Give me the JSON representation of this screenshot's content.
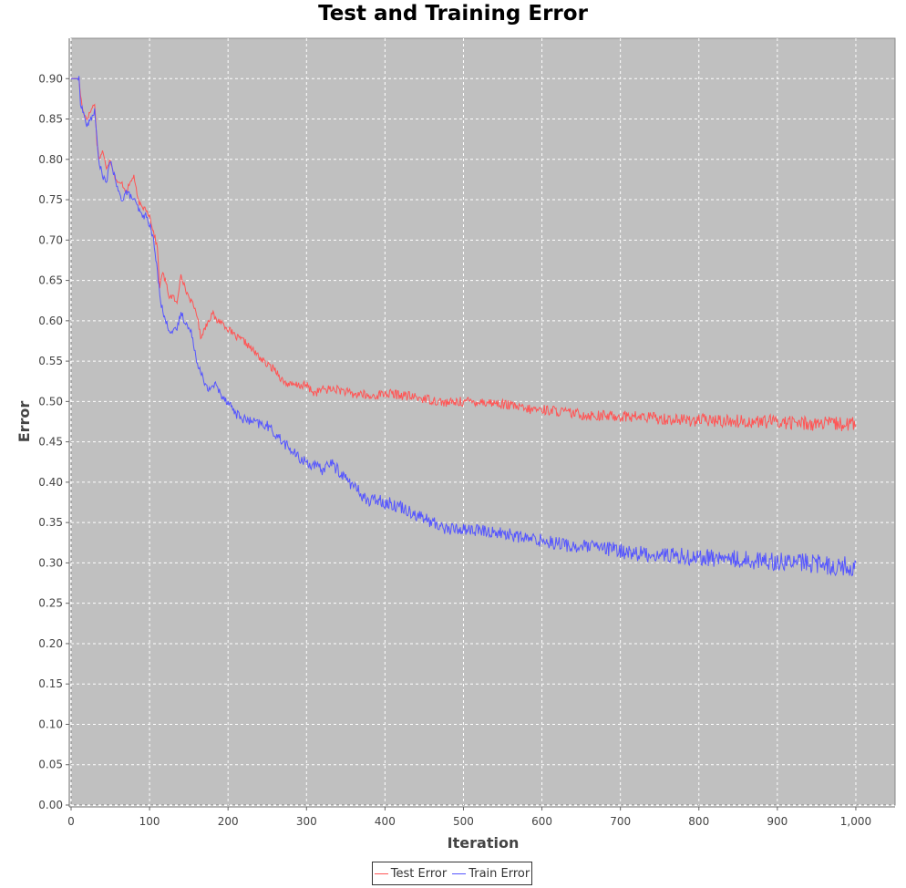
{
  "chart_data": {
    "type": "line",
    "title": "Test and Training Error",
    "xlabel": "Iteration",
    "ylabel": "Error",
    "xlim": [
      0,
      1050
    ],
    "ylim": [
      0.0,
      0.95
    ],
    "x_ticks": [
      {
        "value": 0,
        "label": "0"
      },
      {
        "value": 100,
        "label": "100"
      },
      {
        "value": 200,
        "label": "200"
      },
      {
        "value": 300,
        "label": "300"
      },
      {
        "value": 400,
        "label": "400"
      },
      {
        "value": 500,
        "label": "500"
      },
      {
        "value": 600,
        "label": "600"
      },
      {
        "value": 700,
        "label": "700"
      },
      {
        "value": 800,
        "label": "800"
      },
      {
        "value": 900,
        "label": "900"
      },
      {
        "value": 1000,
        "label": "1,000"
      }
    ],
    "y_ticks": [
      {
        "value": 0.0,
        "label": "0.00"
      },
      {
        "value": 0.05,
        "label": "0.05"
      },
      {
        "value": 0.1,
        "label": "0.10"
      },
      {
        "value": 0.15,
        "label": "0.15"
      },
      {
        "value": 0.2,
        "label": "0.20"
      },
      {
        "value": 0.25,
        "label": "0.25"
      },
      {
        "value": 0.3,
        "label": "0.30"
      },
      {
        "value": 0.35,
        "label": "0.35"
      },
      {
        "value": 0.4,
        "label": "0.40"
      },
      {
        "value": 0.45,
        "label": "0.45"
      },
      {
        "value": 0.5,
        "label": "0.50"
      },
      {
        "value": 0.55,
        "label": "0.55"
      },
      {
        "value": 0.6,
        "label": "0.60"
      },
      {
        "value": 0.65,
        "label": "0.65"
      },
      {
        "value": 0.7,
        "label": "0.70"
      },
      {
        "value": 0.75,
        "label": "0.75"
      },
      {
        "value": 0.8,
        "label": "0.80"
      },
      {
        "value": 0.85,
        "label": "0.85"
      },
      {
        "value": 0.9,
        "label": "0.90"
      }
    ],
    "grid": true,
    "legend_position": "bottom-center",
    "plot_background": "#c0c0c0",
    "series": [
      {
        "name": "Test Error",
        "color": "#ff5555",
        "x": [
          0,
          10,
          12,
          15,
          20,
          25,
          30,
          33,
          36,
          40,
          45,
          50,
          55,
          60,
          65,
          70,
          75,
          80,
          85,
          90,
          95,
          100,
          105,
          110,
          113,
          116,
          120,
          125,
          130,
          135,
          140,
          145,
          150,
          155,
          160,
          165,
          170,
          175,
          180,
          185,
          190,
          200,
          210,
          220,
          230,
          240,
          250,
          260,
          270,
          280,
          290,
          300,
          310,
          320,
          330,
          340,
          350,
          360,
          370,
          380,
          390,
          400,
          420,
          440,
          460,
          480,
          500,
          520,
          540,
          560,
          580,
          600,
          620,
          640,
          660,
          680,
          700,
          720,
          740,
          760,
          780,
          800,
          820,
          840,
          860,
          880,
          900,
          920,
          940,
          960,
          980,
          1000
        ],
        "y": [
          0.9,
          0.9,
          0.88,
          0.86,
          0.85,
          0.86,
          0.87,
          0.82,
          0.8,
          0.81,
          0.79,
          0.8,
          0.78,
          0.77,
          0.77,
          0.76,
          0.77,
          0.78,
          0.75,
          0.74,
          0.74,
          0.73,
          0.71,
          0.69,
          0.64,
          0.66,
          0.65,
          0.63,
          0.63,
          0.62,
          0.66,
          0.64,
          0.63,
          0.62,
          0.61,
          0.58,
          0.59,
          0.6,
          0.61,
          0.6,
          0.6,
          0.59,
          0.58,
          0.575,
          0.565,
          0.555,
          0.545,
          0.54,
          0.525,
          0.52,
          0.52,
          0.52,
          0.51,
          0.515,
          0.515,
          0.515,
          0.512,
          0.508,
          0.51,
          0.505,
          0.508,
          0.51,
          0.508,
          0.505,
          0.502,
          0.498,
          0.5,
          0.5,
          0.498,
          0.495,
          0.49,
          0.49,
          0.488,
          0.485,
          0.483,
          0.482,
          0.482,
          0.481,
          0.48,
          0.478,
          0.477,
          0.477,
          0.476,
          0.476,
          0.475,
          0.475,
          0.475,
          0.474,
          0.473,
          0.472,
          0.472,
          0.472
        ],
        "noise": 0.006
      },
      {
        "name": "Train Error",
        "color": "#5555ff",
        "x": [
          0,
          10,
          12,
          15,
          18,
          20,
          25,
          30,
          35,
          40,
          45,
          50,
          55,
          60,
          65,
          70,
          75,
          80,
          85,
          90,
          95,
          100,
          105,
          110,
          115,
          120,
          125,
          130,
          135,
          140,
          145,
          150,
          155,
          160,
          165,
          170,
          175,
          180,
          185,
          190,
          200,
          210,
          220,
          230,
          240,
          250,
          260,
          270,
          280,
          290,
          300,
          310,
          320,
          325,
          330,
          340,
          350,
          360,
          370,
          380,
          390,
          400,
          420,
          440,
          460,
          480,
          500,
          520,
          540,
          560,
          580,
          600,
          620,
          640,
          660,
          680,
          700,
          720,
          740,
          760,
          780,
          800,
          820,
          840,
          860,
          880,
          900,
          920,
          940,
          960,
          980,
          1000
        ],
        "y": [
          0.9,
          0.9,
          0.87,
          0.86,
          0.85,
          0.84,
          0.85,
          0.86,
          0.8,
          0.78,
          0.77,
          0.8,
          0.78,
          0.76,
          0.75,
          0.76,
          0.755,
          0.75,
          0.74,
          0.73,
          0.73,
          0.72,
          0.7,
          0.66,
          0.62,
          0.6,
          0.59,
          0.585,
          0.59,
          0.61,
          0.6,
          0.59,
          0.58,
          0.55,
          0.54,
          0.52,
          0.515,
          0.52,
          0.52,
          0.51,
          0.5,
          0.485,
          0.478,
          0.475,
          0.472,
          0.47,
          0.46,
          0.45,
          0.44,
          0.43,
          0.425,
          0.42,
          0.415,
          0.42,
          0.425,
          0.415,
          0.405,
          0.395,
          0.385,
          0.375,
          0.38,
          0.375,
          0.37,
          0.36,
          0.35,
          0.342,
          0.342,
          0.34,
          0.338,
          0.335,
          0.33,
          0.328,
          0.325,
          0.32,
          0.32,
          0.318,
          0.315,
          0.312,
          0.31,
          0.31,
          0.308,
          0.307,
          0.306,
          0.305,
          0.304,
          0.303,
          0.302,
          0.301,
          0.3,
          0.298,
          0.296,
          0.295
        ],
        "noise": 0.008
      }
    ]
  }
}
